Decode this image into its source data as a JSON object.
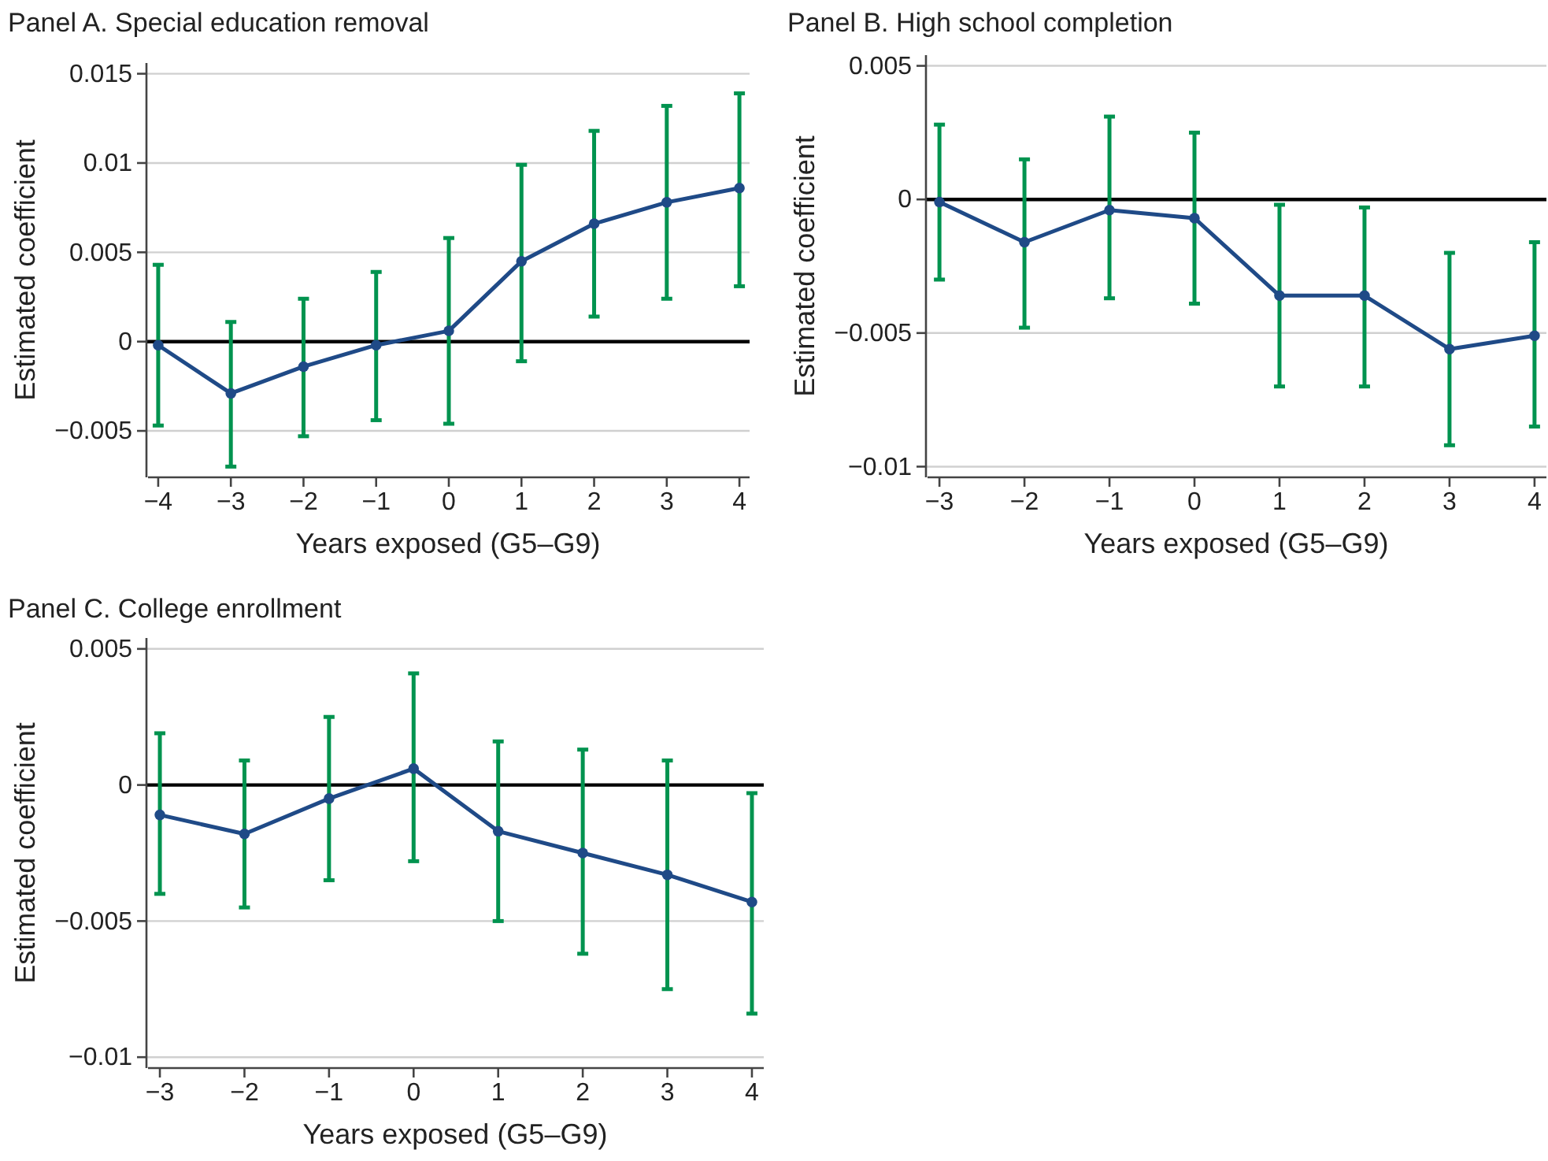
{
  "chart_data": [
    {
      "type": "line",
      "title": "Panel A. Special education removal",
      "xlabel": "Years exposed (G5–G9)",
      "ylabel": "Estimated coefficient",
      "x": [
        -4,
        -3,
        -2,
        -1,
        0,
        1,
        2,
        3,
        4
      ],
      "xlim": [
        -4.14,
        4.14
      ],
      "xticks": [
        -4,
        -3,
        -2,
        -1,
        0,
        1,
        2,
        3,
        4
      ],
      "ylim": [
        -0.0076,
        0.0156
      ],
      "yticks": [
        -0.005,
        0,
        0.005,
        0.01,
        0.015
      ],
      "grid": "y",
      "marker": "circle",
      "line_style": "solid",
      "ref_lines": [
        {
          "axis": "y",
          "value": 0,
          "color": "#000000"
        }
      ],
      "series": [
        {
          "color": "#1f4a87",
          "values": [
            -0.0002,
            -0.0029,
            -0.0014,
            -0.0002,
            0.0006,
            0.0045,
            0.0066,
            0.0078,
            0.0086
          ],
          "errors": [
            [
              -0.0047,
              0.0043
            ],
            [
              -0.007,
              0.0011
            ],
            [
              -0.0053,
              0.0024
            ],
            [
              -0.0044,
              0.0039
            ],
            [
              -0.0046,
              0.0058
            ],
            [
              -0.0011,
              0.0099
            ],
            [
              0.0014,
              0.0118
            ],
            [
              0.0024,
              0.0132
            ],
            [
              0.0031,
              0.0139
            ]
          ]
        }
      ]
    },
    {
      "type": "line",
      "title": "Panel B. High school completion",
      "xlabel": "Years exposed (G5–G9)",
      "ylabel": "Estimated coefficient",
      "x": [
        -3,
        -2,
        -1,
        0,
        1,
        2,
        3,
        4
      ],
      "xlim": [
        -3.14,
        4.14
      ],
      "xticks": [
        -3,
        -2,
        -1,
        0,
        1,
        2,
        3,
        4
      ],
      "ylim": [
        -0.0104,
        0.0054
      ],
      "yticks": [
        -0.01,
        -0.005,
        0,
        0.005
      ],
      "grid": "y",
      "marker": "circle",
      "line_style": "solid",
      "ref_lines": [
        {
          "axis": "y",
          "value": 0,
          "color": "#000000"
        }
      ],
      "series": [
        {
          "color": "#1f4a87",
          "values": [
            -0.0001,
            -0.0016,
            -0.0004,
            -0.0007,
            -0.0036,
            -0.0036,
            -0.0056,
            -0.0051
          ],
          "errors": [
            [
              -0.003,
              0.0028
            ],
            [
              -0.0048,
              0.0015
            ],
            [
              -0.0037,
              0.0031
            ],
            [
              -0.0039,
              0.0025
            ],
            [
              -0.007,
              -0.0002
            ],
            [
              -0.007,
              -0.0003
            ],
            [
              -0.0092,
              -0.002
            ],
            [
              -0.0085,
              -0.0016
            ]
          ]
        }
      ]
    },
    {
      "type": "line",
      "title": "Panel C. College enrollment",
      "xlabel": "Years exposed (G5–G9)",
      "ylabel": "Estimated coefficient",
      "x": [
        -3,
        -2,
        -1,
        0,
        1,
        2,
        3,
        4
      ],
      "xlim": [
        -3.14,
        4.14
      ],
      "xticks": [
        -3,
        -2,
        -1,
        0,
        1,
        2,
        3,
        4
      ],
      "ylim": [
        -0.0104,
        0.0054
      ],
      "yticks": [
        -0.01,
        -0.005,
        0,
        0.005
      ],
      "grid": "y",
      "marker": "circle",
      "line_style": "solid",
      "ref_lines": [
        {
          "axis": "y",
          "value": 0,
          "color": "#000000"
        }
      ],
      "series": [
        {
          "color": "#1f4a87",
          "values": [
            -0.0011,
            -0.0018,
            -0.0005,
            0.0006,
            -0.0017,
            -0.0025,
            -0.0033,
            -0.0043
          ],
          "errors": [
            [
              -0.004,
              0.0019
            ],
            [
              -0.0045,
              0.0009
            ],
            [
              -0.0035,
              0.0025
            ],
            [
              -0.0028,
              0.0041
            ],
            [
              -0.005,
              0.0016
            ],
            [
              -0.0062,
              0.0013
            ],
            [
              -0.0075,
              0.0009
            ],
            [
              -0.0084,
              -0.0003
            ]
          ]
        }
      ]
    }
  ]
}
